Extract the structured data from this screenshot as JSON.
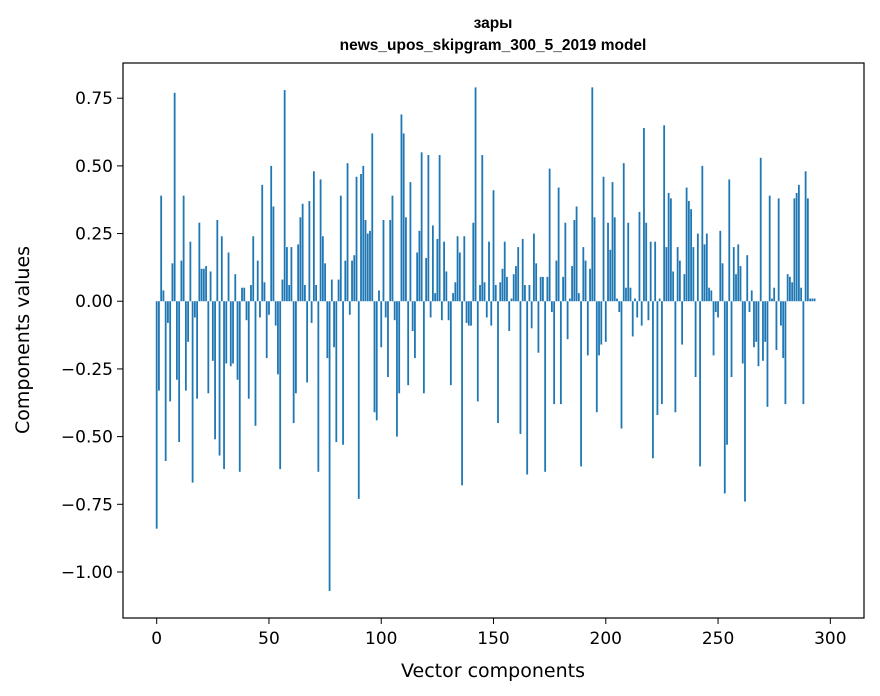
{
  "chart_data": {
    "type": "bar",
    "title": "зары",
    "subtitle": "news_upos_skipgram_300_5_2019 model",
    "xlabel": "Vector components",
    "ylabel": "Components values",
    "xlim": [
      -15,
      315
    ],
    "ylim": [
      -1.17,
      0.88
    ],
    "xticks": [
      0,
      50,
      100,
      150,
      200,
      250,
      300
    ],
    "yticks": [
      0.75,
      0.5,
      0.25,
      0.0,
      -0.25,
      -0.5,
      -0.75,
      -1.0
    ],
    "ytick_labels": [
      "0.75",
      "0.50",
      "0.25",
      "0.00",
      "−0.25",
      "−0.50",
      "−0.75",
      "−1.00"
    ],
    "bar_color": "#1f77b4",
    "grid": false,
    "values": [
      -0.84,
      -0.33,
      0.39,
      0.04,
      -0.59,
      -0.08,
      -0.37,
      0.14,
      0.77,
      -0.29,
      -0.52,
      0.15,
      0.39,
      -0.33,
      -0.15,
      0.22,
      -0.67,
      -0.06,
      -0.36,
      0.29,
      0.12,
      0.12,
      0.13,
      -0.34,
      0.11,
      -0.22,
      -0.51,
      0.3,
      -0.57,
      0.24,
      -0.62,
      -0.23,
      0.18,
      -0.24,
      -0.23,
      0.1,
      -0.29,
      -0.63,
      0.05,
      0.05,
      -0.07,
      -0.36,
      0.06,
      0.24,
      -0.46,
      0.15,
      -0.06,
      0.43,
      0.07,
      -0.21,
      -0.05,
      0.5,
      0.35,
      -0.09,
      -0.27,
      -0.62,
      0.08,
      0.78,
      0.2,
      0.06,
      0.2,
      -0.45,
      -0.34,
      0.21,
      0.31,
      0.36,
      0.06,
      -0.3,
      0.37,
      -0.08,
      0.48,
      0.06,
      -0.63,
      0.45,
      0.24,
      0.14,
      -0.21,
      -1.07,
      0.08,
      -0.17,
      -0.52,
      0.08,
      0.39,
      -0.53,
      0.15,
      0.51,
      -0.05,
      0.15,
      0.17,
      0.46,
      -0.73,
      0.47,
      0.5,
      0.3,
      0.25,
      0.26,
      0.62,
      -0.41,
      -0.44,
      0.04,
      -0.17,
      0.3,
      -0.06,
      -0.28,
      0.3,
      0.39,
      -0.07,
      -0.5,
      -0.34,
      0.69,
      0.62,
      0.31,
      -0.31,
      0.44,
      -0.11,
      -0.21,
      0.18,
      0.26,
      0.55,
      -0.34,
      0.16,
      0.54,
      -0.06,
      0.28,
      0.03,
      0.23,
      0.54,
      -0.07,
      0.22,
      0.11,
      -0.07,
      -0.31,
      0.03,
      0.07,
      0.24,
      0.18,
      -0.68,
      0.24,
      -0.08,
      -0.09,
      -0.09,
      0.29,
      0.79,
      -0.37,
      0.06,
      0.54,
      0.07,
      -0.06,
      0.22,
      -0.09,
      0.41,
      0.06,
      -0.45,
      0.07,
      0.12,
      0.22,
      0.09,
      -0.11,
      0.01,
      0.1,
      0.13,
      0.2,
      -0.49,
      0.23,
      0.06,
      -0.64,
      0.06,
      -0.1,
      0.25,
      0.14,
      -0.19,
      0.09,
      0.09,
      -0.63,
      0.09,
      0.49,
      -0.04,
      -0.38,
      0.15,
      0.42,
      -0.38,
      0.09,
      0.29,
      -0.14,
      0.01,
      0.13,
      0.3,
      0.35,
      0.03,
      -0.61,
      0.2,
      0.15,
      -0.2,
      0.12,
      0.79,
      0.31,
      -0.41,
      -0.2,
      -0.16,
      0.46,
      -0.15,
      0.29,
      0.19,
      0.44,
      0.31,
      0.01,
      -0.04,
      -0.47,
      0.51,
      0.05,
      0.29,
      0.05,
      -0.13,
      0.01,
      -0.06,
      0.33,
      -0.09,
      0.64,
      0.29,
      -0.07,
      0.22,
      -0.58,
      0.22,
      -0.42,
      0.01,
      -0.38,
      0.65,
      0.2,
      0.4,
      0.38,
      0.11,
      -0.41,
      0.2,
      0.15,
      -0.16,
      0.1,
      0.42,
      0.37,
      0.34,
      0.2,
      -0.28,
      0.25,
      -0.61,
      0.5,
      0.21,
      0.25,
      0.05,
      0.04,
      -0.2,
      -0.04,
      -0.06,
      0.26,
      0.14,
      -0.71,
      -0.53,
      0.45,
      -0.28,
      0.2,
      0.1,
      0.21,
      0.13,
      -0.23,
      -0.74,
      0.17,
      -0.04,
      0.04,
      -0.17,
      -0.15,
      -0.24,
      0.53,
      -0.22,
      -0.15,
      -0.39,
      0.39,
      0.01,
      0.05,
      -0.18,
      0.38,
      -0.09,
      -0.21,
      -0.38,
      0.1,
      0.09,
      0.07,
      0.38,
      0.4,
      0.43,
      0.05,
      -0.38,
      0.48,
      0.38,
      0.01,
      0.01,
      0.01
    ]
  }
}
